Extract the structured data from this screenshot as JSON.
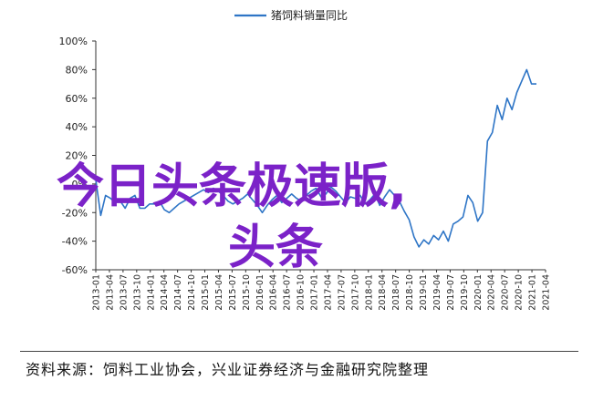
{
  "chart_data": {
    "type": "line",
    "title": "",
    "xlabel": "",
    "ylabel": "",
    "ylim": [
      -60,
      100
    ],
    "yticks": [
      -60,
      -40,
      -20,
      0,
      20,
      40,
      60,
      80,
      100
    ],
    "ytick_labels": [
      "-60%",
      "-40%",
      "-20%",
      "0%",
      "20%",
      "40%",
      "60%",
      "80%",
      "100%"
    ],
    "grid": false,
    "legend": "top-center",
    "x_labels": [
      "2013-01",
      "2013-04",
      "2013-07",
      "2013-10",
      "2014-01",
      "2014-04",
      "2014-07",
      "2014-10",
      "2015-01",
      "2015-04",
      "2015-07",
      "2015-10",
      "2016-01",
      "2016-04",
      "2016-07",
      "2016-10",
      "2017-01",
      "2017-04",
      "2017-07",
      "2017-10",
      "2018-01",
      "2018-04",
      "2018-07",
      "2018-10",
      "2019-01",
      "2019-04",
      "2019-07",
      "2019-10",
      "2020-01",
      "2020-04",
      "2020-07",
      "2020-10",
      "2021-01",
      "2021-04"
    ],
    "series": [
      {
        "name": "猪饲料销量同比",
        "color": "#2e75c6",
        "values": [
          3,
          -22,
          -8,
          -10,
          -13,
          -12,
          -17,
          -10,
          -8,
          -17,
          -17,
          -14,
          -14,
          -12,
          -18,
          -20,
          -17,
          -14,
          -12,
          -10,
          -8,
          -6,
          -4,
          -6,
          -3,
          -5,
          -8,
          -12,
          -14,
          -12,
          -10,
          -7,
          -11,
          -15,
          -20,
          -15,
          -11,
          -8,
          -13,
          -10,
          -7,
          -10,
          -12,
          -8,
          -5,
          -3,
          -9,
          -7,
          -2,
          -5,
          -9,
          -13,
          -9,
          -10,
          -8,
          -14,
          -11,
          -7,
          -15,
          -9,
          -4,
          -8,
          -12,
          -19,
          -25,
          -37,
          -44,
          -39,
          -42,
          -36,
          -39,
          -33,
          -40,
          -28,
          -26,
          -23,
          -8,
          -13,
          -26,
          -20,
          30,
          36,
          55,
          45,
          60,
          52,
          64,
          72,
          80,
          70,
          70
        ]
      }
    ]
  },
  "watermark": {
    "line1": "今日头条极速版,",
    "line2": "头条"
  },
  "source": "资料来源：饲料工业协会，兴业证券经济与金融研究院整理"
}
